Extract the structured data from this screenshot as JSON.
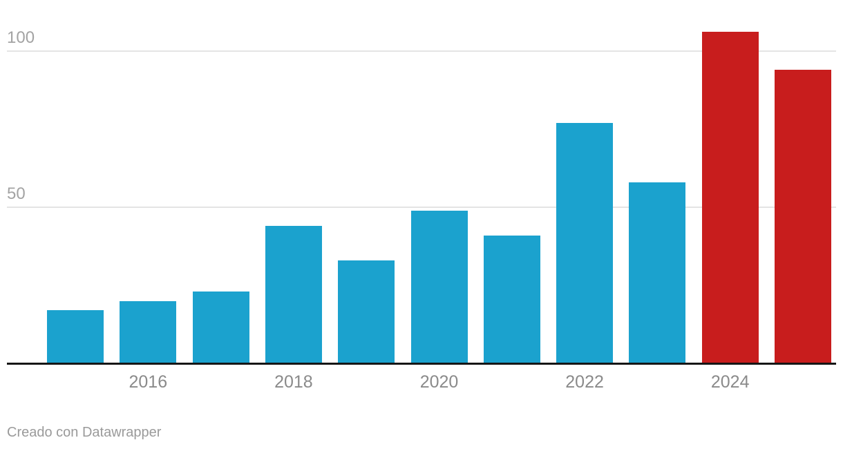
{
  "chart_data": {
    "type": "bar",
    "categories": [
      "2015",
      "2016",
      "2017",
      "2018",
      "2019",
      "2020",
      "2021",
      "2022",
      "2023",
      "2024",
      "2025"
    ],
    "values": [
      17,
      20,
      23,
      44,
      33,
      49,
      41,
      77,
      58,
      106,
      94
    ],
    "series": [
      {
        "name": "value",
        "values": [
          17,
          20,
          23,
          44,
          33,
          49,
          41,
          77,
          58,
          106,
          94
        ]
      }
    ],
    "highlight_categories": [
      "2024",
      "2025"
    ],
    "title": "",
    "xlabel": "",
    "ylabel": "",
    "ylim": [
      0,
      107
    ],
    "y_ticks": [
      50,
      100
    ],
    "x_tick_labels": [
      "2016",
      "2018",
      "2020",
      "2022",
      "2024"
    ],
    "grid": "horizontal",
    "legend": "none",
    "colors": {
      "default_bar": "#1BA2CE",
      "highlight_bar": "#C81D1D",
      "axis_line": "#161616",
      "gridline": "#E4E4E4",
      "y_tick_text": "#A3A3A3",
      "x_tick_text": "#8A8A8A"
    }
  },
  "footer": {
    "attribution": "Creado con Datawrapper",
    "attribution_color": "#9A9A9A"
  }
}
